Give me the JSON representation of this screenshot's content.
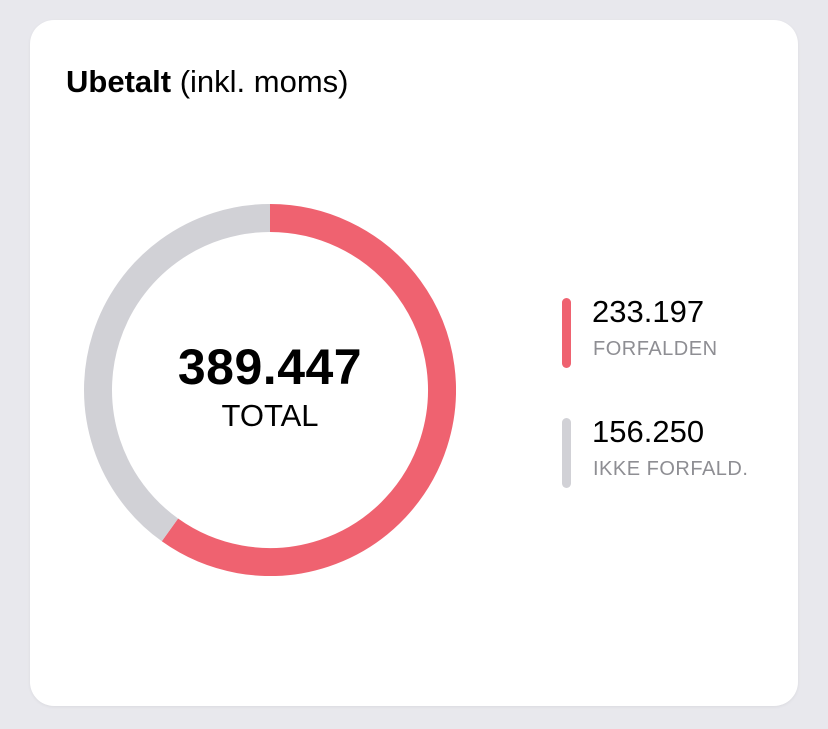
{
  "card": {
    "title_bold": "Ubetalt",
    "title_rest": " (inkl. moms)"
  },
  "center": {
    "total": "389.447",
    "label": "TOTAL"
  },
  "legend": [
    {
      "value": "233.197",
      "label": "FORFALDEN",
      "color": "#ef6270"
    },
    {
      "value": "156.250",
      "label": "IKKE FORFALD.",
      "color": "#d1d1d6"
    }
  ],
  "chart_data": {
    "type": "pie",
    "variant": "donut",
    "start": "top",
    "direction": "clockwise",
    "categories": [
      "FORFALDEN",
      "IKKE FORFALD."
    ],
    "values": [
      233197,
      156250
    ],
    "colors": [
      "#ef6270",
      "#d1d1d6"
    ],
    "total": 389447,
    "legend_position": "right"
  }
}
